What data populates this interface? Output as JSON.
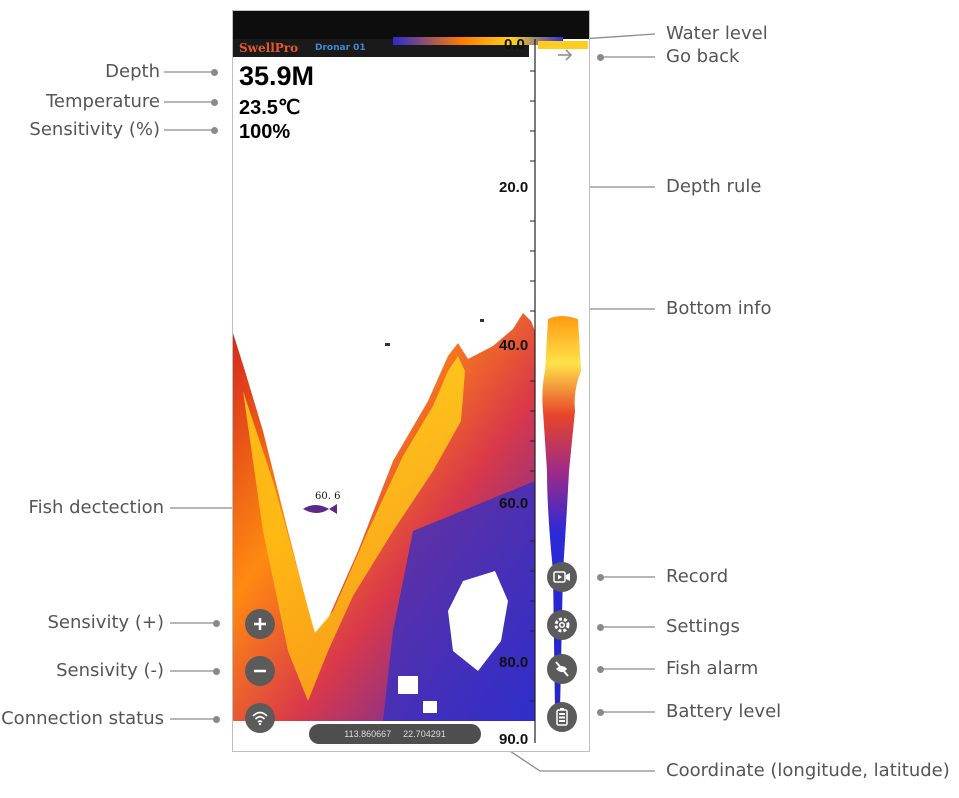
{
  "device": {
    "brand": "SwellPro",
    "name": "Dronar 01"
  },
  "readings": {
    "depth": "35.9M",
    "temperature": "23.5℃",
    "sensitivity": "100%"
  },
  "depth_rule": {
    "ticks": [
      "0.0",
      "20.0",
      "40.0",
      "60.0",
      "80.0",
      "90.0"
    ]
  },
  "fish": {
    "label": "60. 6"
  },
  "coordinates": {
    "longitude": "113.860667",
    "latitude": "22.704291"
  },
  "callouts": {
    "depth": "Depth",
    "temperature": "Temperature",
    "sensitivity": "Sensitivity (%)",
    "fish_detection": "Fish dectection",
    "sens_plus": "Sensivity (+)",
    "sens_minus": "Sensivity (-)",
    "connection": "Connection status",
    "water_level": "Water level",
    "go_back": "Go back",
    "depth_rule": "Depth rule",
    "bottom_info": "Bottom info",
    "record": "Record",
    "settings": "Settings",
    "fish_alarm": "Fish alarm",
    "battery": "Battery level",
    "coordinate": "Coordinate (longitude, latitude)"
  },
  "icons": {
    "go_back": "arrow-right-icon",
    "record": "video-record-icon",
    "settings": "gear-icon",
    "fish_alarm": "fish-alarm-off-icon",
    "battery": "battery-icon",
    "sens_plus": "plus-icon",
    "sens_minus": "minus-icon",
    "connection": "wifi-icon"
  },
  "colors": {
    "brand": "#e8582b",
    "device_name": "#3d8ad6",
    "button": "#5b5b5b"
  }
}
